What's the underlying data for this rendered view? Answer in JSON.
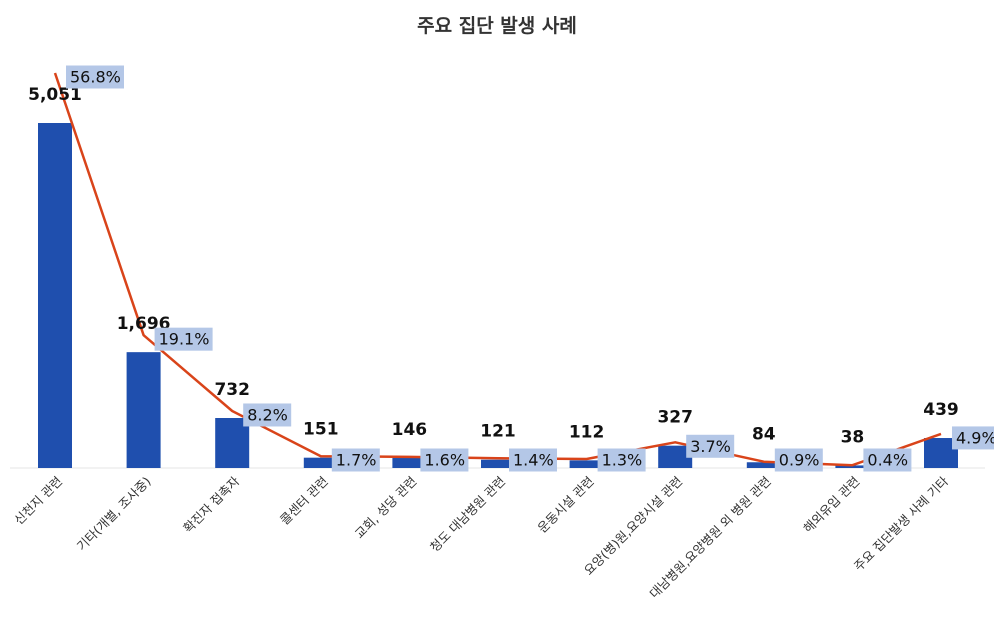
{
  "chart_data": {
    "type": "bar",
    "title": "주요 집단 발생 사례",
    "xlabel": "",
    "ylabel": "",
    "categories": [
      "신천지 관련",
      "기타(개별, 조사중)",
      "확진자 접촉자",
      "콜센터 관련",
      "교회, 성당 관련",
      "청도 대남병원 관련",
      "운동시설 관련",
      "요양(병)원,요양시설 관련",
      "대남병원,요양병원 외 병원 관련",
      "해외유입 관련",
      "주요 집단발생 사례 기타"
    ],
    "series": [
      {
        "kind": "bar",
        "values": [
          5051,
          1696,
          732,
          151,
          146,
          121,
          112,
          327,
          84,
          38,
          439
        ],
        "labels": [
          "5,051",
          "1,696",
          "732",
          "151",
          "146",
          "121",
          "112",
          "327",
          "84",
          "38",
          "439"
        ]
      },
      {
        "kind": "line",
        "values": [
          56.8,
          19.1,
          8.2,
          1.7,
          1.6,
          1.4,
          1.3,
          3.7,
          0.9,
          0.4,
          4.9
        ],
        "labels": [
          "56.8%",
          "19.1%",
          "8.2%",
          "1.7%",
          "1.6%",
          "1.4%",
          "1.3%",
          "3.7%",
          "0.9%",
          "0.4%",
          "4.9%"
        ]
      }
    ],
    "grid": false,
    "legend": "none",
    "colors": {
      "bar": "#1f4fae",
      "line": "#d9441a",
      "pct_label_bg": "#b4c7e7",
      "title": "#333333"
    }
  }
}
